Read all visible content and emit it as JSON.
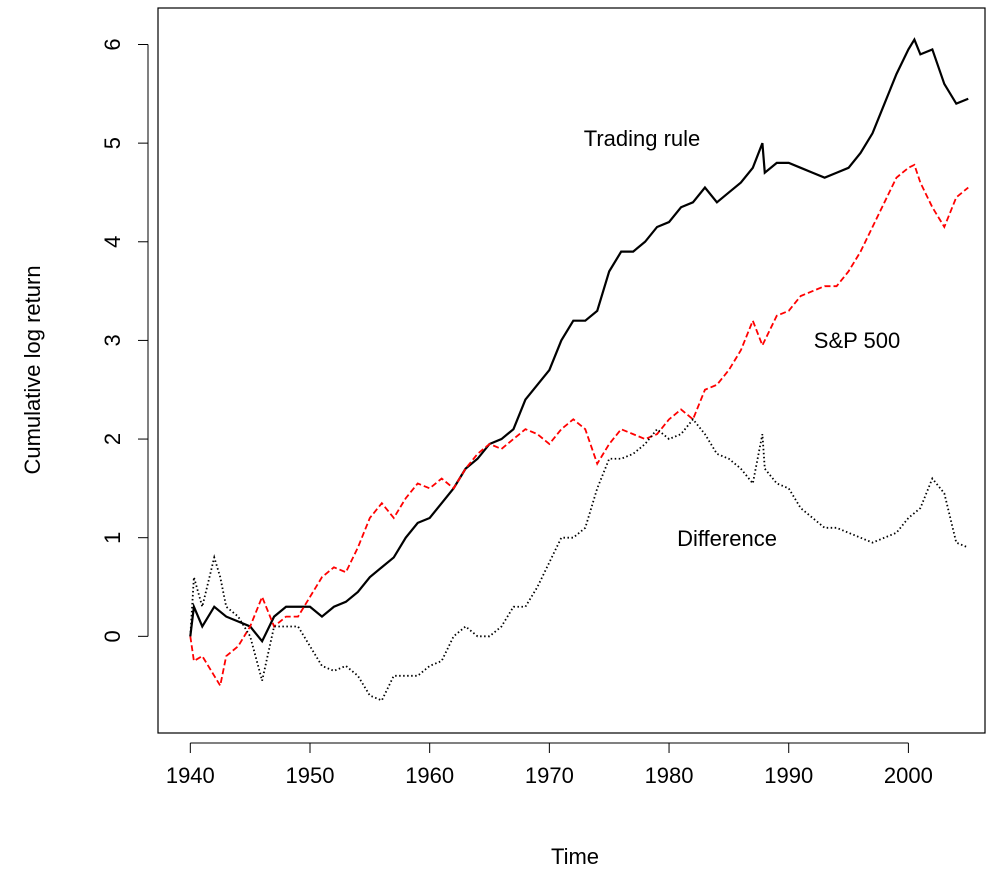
{
  "chart_data": {
    "type": "line",
    "xlabel": "Time",
    "ylabel": "Cumulative log return",
    "annotations": [
      "Trading rule",
      "S&P 500",
      "Difference"
    ],
    "x": [
      1940,
      1940.3,
      1941,
      1942,
      1942.5,
      1943,
      1944,
      1945,
      1946,
      1947,
      1948,
      1949,
      1950,
      1951,
      1952,
      1953,
      1954,
      1955,
      1956,
      1957,
      1958,
      1959,
      1960,
      1961,
      1962,
      1963,
      1964,
      1965,
      1966,
      1967,
      1968,
      1969,
      1970,
      1971,
      1972,
      1973,
      1974,
      1975,
      1976,
      1977,
      1978,
      1979,
      1980,
      1981,
      1982,
      1983,
      1984,
      1985,
      1986,
      1987,
      1987.8,
      1988,
      1989,
      1990,
      1991,
      1992,
      1993,
      1994,
      1995,
      1996,
      1997,
      1998,
      1999,
      2000,
      2000.5,
      2001,
      2002,
      2003,
      2004,
      2005
    ],
    "series": [
      {
        "name": "Trading rule",
        "color": "#000000",
        "linestyle": "solid",
        "values": [
          0,
          0.3,
          0.1,
          0.3,
          0.25,
          0.2,
          0.15,
          0.1,
          -0.05,
          0.2,
          0.3,
          0.3,
          0.3,
          0.2,
          0.3,
          0.35,
          0.45,
          0.6,
          0.7,
          0.8,
          1.0,
          1.15,
          1.2,
          1.35,
          1.5,
          1.7,
          1.8,
          1.95,
          2.0,
          2.1,
          2.4,
          2.55,
          2.7,
          3.0,
          3.2,
          3.2,
          3.3,
          3.7,
          3.9,
          3.9,
          4.0,
          4.15,
          4.2,
          4.35,
          4.4,
          4.55,
          4.4,
          4.5,
          4.6,
          4.75,
          5.0,
          4.7,
          4.8,
          4.8,
          4.75,
          4.7,
          4.65,
          4.7,
          4.75,
          4.9,
          5.1,
          5.4,
          5.7,
          5.95,
          6.05,
          5.9,
          5.95,
          5.6,
          5.4,
          5.45
        ]
      },
      {
        "name": "S&P 500",
        "color": "#ff0000",
        "linestyle": "dashed",
        "values": [
          0,
          -0.25,
          -0.2,
          -0.4,
          -0.5,
          -0.2,
          -0.1,
          0.1,
          0.4,
          0.1,
          0.2,
          0.2,
          0.4,
          0.6,
          0.7,
          0.65,
          0.9,
          1.2,
          1.35,
          1.2,
          1.4,
          1.55,
          1.5,
          1.6,
          1.5,
          1.7,
          1.85,
          1.95,
          1.9,
          2.0,
          2.1,
          2.05,
          1.95,
          2.1,
          2.2,
          2.1,
          1.75,
          1.95,
          2.1,
          2.05,
          2.0,
          2.05,
          2.2,
          2.3,
          2.2,
          2.5,
          2.55,
          2.7,
          2.9,
          3.2,
          2.95,
          3.0,
          3.25,
          3.3,
          3.45,
          3.5,
          3.55,
          3.55,
          3.7,
          3.9,
          4.15,
          4.4,
          4.65,
          4.75,
          4.78,
          4.6,
          4.35,
          4.15,
          4.45,
          4.55
        ]
      },
      {
        "name": "Difference",
        "color": "#000000",
        "linestyle": "dotted",
        "values": [
          0,
          0.6,
          0.3,
          0.8,
          0.6,
          0.3,
          0.2,
          0.0,
          -0.45,
          0.1,
          0.1,
          0.1,
          -0.1,
          -0.3,
          -0.35,
          -0.3,
          -0.4,
          -0.6,
          -0.65,
          -0.4,
          -0.4,
          -0.4,
          -0.3,
          -0.25,
          0.0,
          0.1,
          0.0,
          0.0,
          0.1,
          0.3,
          0.3,
          0.5,
          0.75,
          1.0,
          1.0,
          1.1,
          1.5,
          1.8,
          1.8,
          1.85,
          1.95,
          2.1,
          2.0,
          2.05,
          2.2,
          2.05,
          1.85,
          1.8,
          1.7,
          1.55,
          2.05,
          1.7,
          1.55,
          1.5,
          1.3,
          1.2,
          1.1,
          1.1,
          1.05,
          1.0,
          0.95,
          1.0,
          1.05,
          1.2,
          1.25,
          1.3,
          1.6,
          1.45,
          0.95,
          0.9
        ]
      }
    ],
    "xlim": [
      1937.3,
      2006.4
    ],
    "ylim": [
      -0.98,
      6.37
    ],
    "xticks": [
      1940,
      1950,
      1960,
      1970,
      1980,
      1990,
      2000
    ],
    "yticks": [
      0,
      1,
      2,
      3,
      4,
      5,
      6
    ],
    "grid": false
  }
}
